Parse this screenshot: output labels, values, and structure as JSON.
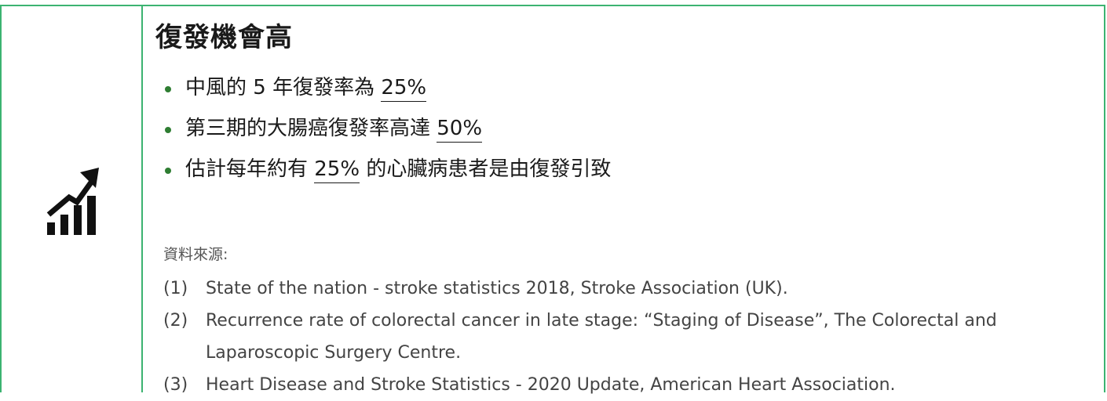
{
  "heading": "復發機會高",
  "bullets": [
    {
      "before": "中風的 5 年復發率為 ",
      "highlight": "25%",
      "after": ""
    },
    {
      "before": "第三期的大腸癌復發率高達 ",
      "highlight": "50%",
      "after": ""
    },
    {
      "before": "估計每年約有 ",
      "highlight": "25%",
      "after": " 的心臟病患者是由復發引致"
    }
  ],
  "sources_label": "資料來源:",
  "references": [
    {
      "num": "(1)",
      "text": "State of the nation - stroke statistics 2018, Stroke Association (UK)."
    },
    {
      "num": "(2)",
      "text": "Recurrence rate of colorectal cancer in late stage: “Staging of Disease”, The Colorectal and Laparoscopic Surgery Centre."
    },
    {
      "num": "(3)",
      "text": "Heart Disease and Stroke Statistics - 2020 Update, American Heart Association."
    }
  ],
  "icon": "growth-chart-icon",
  "colors": {
    "border": "#3cb371",
    "bullet": "#2e7d32",
    "text": "#1a1a1a"
  }
}
